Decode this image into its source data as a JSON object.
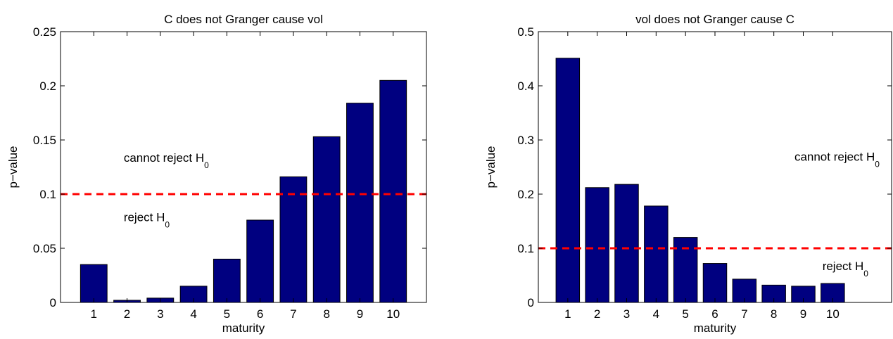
{
  "chart_data": [
    {
      "type": "bar",
      "title": "C does not Granger cause vol",
      "xlabel": "maturity",
      "ylabel": "p−value",
      "categories": [
        "1",
        "2",
        "3",
        "4",
        "5",
        "6",
        "7",
        "8",
        "9",
        "10"
      ],
      "values": [
        0.035,
        0.002,
        0.004,
        0.015,
        0.04,
        0.076,
        0.116,
        0.153,
        0.184,
        0.205
      ],
      "xlim": [
        0,
        11
      ],
      "ylim": [
        0,
        0.25
      ],
      "yticks": [
        "0",
        "0.05",
        "0.1",
        "0.15",
        "0.2",
        "0.25"
      ],
      "ytick_values": [
        0,
        0.05,
        0.1,
        0.15,
        0.2,
        0.25
      ],
      "threshold": 0.1,
      "annotations": [
        {
          "text": "cannot reject H",
          "sub": "0",
          "x": 1.9,
          "y": 0.13
        },
        {
          "text": "reject H",
          "sub": "0",
          "x": 1.9,
          "y": 0.075
        }
      ],
      "grid": false,
      "legend": "none",
      "bar_color": "#000080",
      "threshold_color": "#ff0000"
    },
    {
      "type": "bar",
      "title": "vol does not Granger cause C",
      "xlabel": "maturity",
      "ylabel": "p−value",
      "categories": [
        "1",
        "2",
        "3",
        "4",
        "5",
        "6",
        "7",
        "8",
        "9",
        "10"
      ],
      "values": [
        0.451,
        0.212,
        0.218,
        0.178,
        0.12,
        0.072,
        0.043,
        0.032,
        0.03,
        0.035
      ],
      "xlim": [
        0,
        12
      ],
      "ylim": [
        0,
        0.5
      ],
      "yticks": [
        "0",
        "0.1",
        "0.2",
        "0.3",
        "0.4",
        "0.5"
      ],
      "ytick_values": [
        0,
        0.1,
        0.2,
        0.3,
        0.4,
        0.5
      ],
      "threshold": 0.1,
      "annotations": [
        {
          "text": "cannot reject H",
          "sub": "0",
          "x": 8.7,
          "y": 0.262
        },
        {
          "text": "reject H",
          "sub": "0",
          "x": 9.65,
          "y": 0.06
        }
      ],
      "grid": false,
      "legend": "none",
      "bar_color": "#000080",
      "threshold_color": "#ff0000"
    }
  ]
}
